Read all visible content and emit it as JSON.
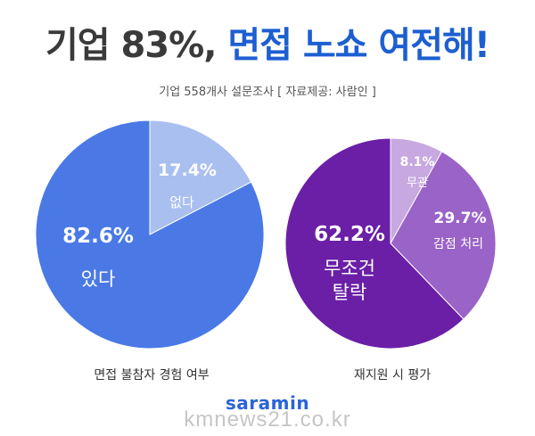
{
  "headline": {
    "part1": "기업 83%,",
    "part2": "면접 노쇼 여전해!"
  },
  "subtitle": "기업 558개사 설문조사  [ 자료제공: 사람인 ]",
  "colors": {
    "left_main": "#4a79e6",
    "left_minor": "#a9bff0",
    "right_main": "#6a1fa6",
    "right_mid": "#9a63c7",
    "right_minor": "#c7a8e0",
    "brand": "#2a64d8"
  },
  "chart_data": [
    {
      "type": "pie",
      "title": "면접 불참자 경험 여부",
      "slices": [
        {
          "label": "있다",
          "value": 82.6,
          "display": "82.6%",
          "color": "#4a79e6"
        },
        {
          "label": "없다",
          "value": 17.4,
          "display": "17.4%",
          "color": "#a9bff0"
        }
      ]
    },
    {
      "type": "pie",
      "title": "재지원 시 평가",
      "slices": [
        {
          "label": "무조건 탈락",
          "value": 62.2,
          "display": "62.2%",
          "color": "#6a1fa6"
        },
        {
          "label": "감점 처리",
          "value": 29.7,
          "display": "29.7%",
          "color": "#9a63c7"
        },
        {
          "label": "무관",
          "value": 8.1,
          "display": "8.1%",
          "color": "#c7a8e0"
        }
      ]
    }
  ],
  "brand": "saramin",
  "watermark": "kmnews21.co.kr"
}
